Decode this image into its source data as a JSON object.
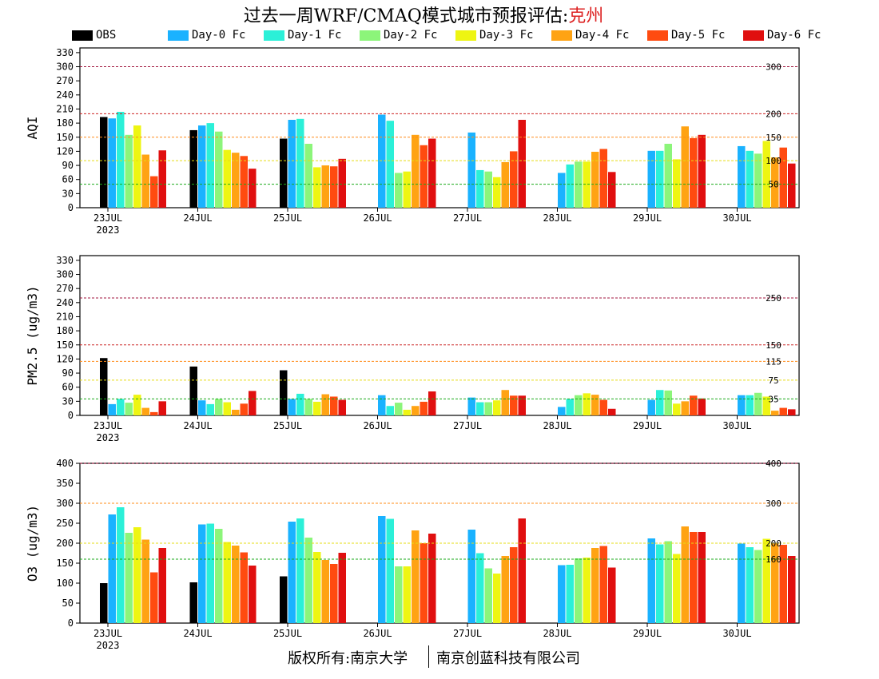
{
  "title_main": "过去一周WRF/CMAQ模式城市预报评估:",
  "title_city": "克州",
  "footer_left": "版权所有:南京大学",
  "footer_right": "南京创蓝科技有限公司",
  "colors": {
    "OBS": "#000000",
    "Day-0 Fc": "#1ab2ff",
    "Day-1 Fc": "#2bf0d8",
    "Day-2 Fc": "#8cf57a",
    "Day-3 Fc": "#eef512",
    "Day-4 Fc": "#ffa313",
    "Day-5 Fc": "#ff4b10",
    "Day-6 Fc": "#e00f0f"
  },
  "legend": [
    "OBS",
    "Day-0 Fc",
    "Day-1 Fc",
    "Day-2 Fc",
    "Day-3 Fc",
    "Day-4 Fc",
    "Day-5 Fc",
    "Day-6 Fc"
  ],
  "chart_data": [
    {
      "type": "bar",
      "ylabel": "AQI",
      "categories": [
        "23JUL",
        "24JUL",
        "25JUL",
        "26JUL",
        "27JUL",
        "28JUL",
        "29JUL",
        "30JUL"
      ],
      "year_label": "2023",
      "ylim": [
        0,
        340
      ],
      "yticks": [
        0,
        30,
        60,
        90,
        120,
        150,
        180,
        210,
        240,
        270,
        300,
        330
      ],
      "thresholds": [
        {
          "value": 300,
          "label": "300",
          "color": "#a0143c"
        },
        {
          "value": 200,
          "label": "200",
          "color": "#cc2222"
        },
        {
          "value": 150,
          "label": "150",
          "color": "#ff8c1a"
        },
        {
          "value": 100,
          "label": "100",
          "color": "#e6dc14"
        },
        {
          "value": 50,
          "label": "50",
          "color": "#1aaa1a"
        }
      ],
      "series": [
        {
          "name": "OBS",
          "values": [
            193,
            165,
            147,
            null,
            null,
            null,
            null,
            null
          ]
        },
        {
          "name": "Day-0 Fc",
          "values": [
            190,
            175,
            187,
            198,
            160,
            74,
            121,
            131
          ]
        },
        {
          "name": "Day-1 Fc",
          "values": [
            204,
            180,
            189,
            185,
            80,
            92,
            121,
            121
          ]
        },
        {
          "name": "Day-2 Fc",
          "values": [
            155,
            162,
            136,
            74,
            77,
            98,
            136,
            115
          ]
        },
        {
          "name": "Day-3 Fc",
          "values": [
            175,
            123,
            86,
            77,
            65,
            98,
            103,
            142
          ]
        },
        {
          "name": "Day-4 Fc",
          "values": [
            113,
            117,
            90,
            155,
            97,
            119,
            173,
            107
          ]
        },
        {
          "name": "Day-5 Fc",
          "values": [
            67,
            110,
            88,
            133,
            120,
            125,
            148,
            128
          ]
        },
        {
          "name": "Day-6 Fc",
          "values": [
            122,
            83,
            104,
            147,
            187,
            76,
            155,
            94
          ]
        }
      ]
    },
    {
      "type": "bar",
      "ylabel": "PM2.5 (ug/m3)",
      "categories": [
        "23JUL",
        "24JUL",
        "25JUL",
        "26JUL",
        "27JUL",
        "28JUL",
        "29JUL",
        "30JUL"
      ],
      "year_label": "2023",
      "ylim": [
        0,
        340
      ],
      "yticks": [
        0,
        30,
        60,
        90,
        120,
        150,
        180,
        210,
        240,
        270,
        300,
        330
      ],
      "thresholds": [
        {
          "value": 250,
          "label": "250",
          "color": "#a0143c"
        },
        {
          "value": 150,
          "label": "150",
          "color": "#cc2222"
        },
        {
          "value": 115,
          "label": "115",
          "color": "#ff8c1a"
        },
        {
          "value": 75,
          "label": "75",
          "color": "#e6dc14"
        },
        {
          "value": 35,
          "label": "35",
          "color": "#1aaa1a"
        }
      ],
      "series": [
        {
          "name": "OBS",
          "values": [
            122,
            104,
            96,
            null,
            null,
            null,
            null,
            null
          ]
        },
        {
          "name": "Day-0 Fc",
          "values": [
            24,
            32,
            35,
            43,
            38,
            18,
            33,
            43
          ]
        },
        {
          "name": "Day-1 Fc",
          "values": [
            35,
            24,
            46,
            20,
            28,
            35,
            54,
            43
          ]
        },
        {
          "name": "Day-2 Fc",
          "values": [
            27,
            35,
            35,
            27,
            28,
            43,
            53,
            48
          ]
        },
        {
          "name": "Day-3 Fc",
          "values": [
            44,
            28,
            29,
            12,
            32,
            47,
            25,
            40
          ]
        },
        {
          "name": "Day-4 Fc",
          "values": [
            16,
            12,
            45,
            20,
            54,
            44,
            30,
            10
          ]
        },
        {
          "name": "Day-5 Fc",
          "values": [
            7,
            25,
            40,
            29,
            42,
            33,
            42,
            16
          ]
        },
        {
          "name": "Day-6 Fc",
          "values": [
            30,
            52,
            33,
            51,
            42,
            14,
            36,
            13
          ]
        }
      ]
    },
    {
      "type": "bar",
      "ylabel": "O3 (ug/m3)",
      "categories": [
        "23JUL",
        "24JUL",
        "25JUL",
        "26JUL",
        "27JUL",
        "28JUL",
        "29JUL",
        "30JUL"
      ],
      "year_label": "2023",
      "ylim": [
        0,
        400
      ],
      "yticks": [
        0,
        50,
        100,
        150,
        200,
        250,
        300,
        350,
        400
      ],
      "thresholds": [
        {
          "value": 400,
          "label": "400",
          "color": "#a0143c"
        },
        {
          "value": 300,
          "label": "300",
          "color": "#ff8c1a"
        },
        {
          "value": 200,
          "label": "200",
          "color": "#e6dc14"
        },
        {
          "value": 160,
          "label": "160",
          "color": "#1aaa1a"
        }
      ],
      "series": [
        {
          "name": "OBS",
          "values": [
            100,
            102,
            117,
            null,
            null,
            null,
            null,
            null
          ]
        },
        {
          "name": "Day-0 Fc",
          "values": [
            272,
            247,
            254,
            268,
            234,
            145,
            212,
            199
          ]
        },
        {
          "name": "Day-1 Fc",
          "values": [
            290,
            249,
            262,
            261,
            175,
            146,
            197,
            190
          ]
        },
        {
          "name": "Day-2 Fc",
          "values": [
            226,
            236,
            214,
            142,
            137,
            162,
            205,
            183
          ]
        },
        {
          "name": "Day-3 Fc",
          "values": [
            240,
            203,
            178,
            142,
            124,
            164,
            173,
            211
          ]
        },
        {
          "name": "Day-4 Fc",
          "values": [
            209,
            194,
            158,
            232,
            168,
            188,
            242,
            199
          ]
        },
        {
          "name": "Day-5 Fc",
          "values": [
            127,
            177,
            148,
            200,
            190,
            193,
            228,
            196
          ]
        },
        {
          "name": "Day-6 Fc",
          "values": [
            188,
            144,
            176,
            224,
            262,
            139,
            228,
            168
          ]
        }
      ]
    }
  ]
}
